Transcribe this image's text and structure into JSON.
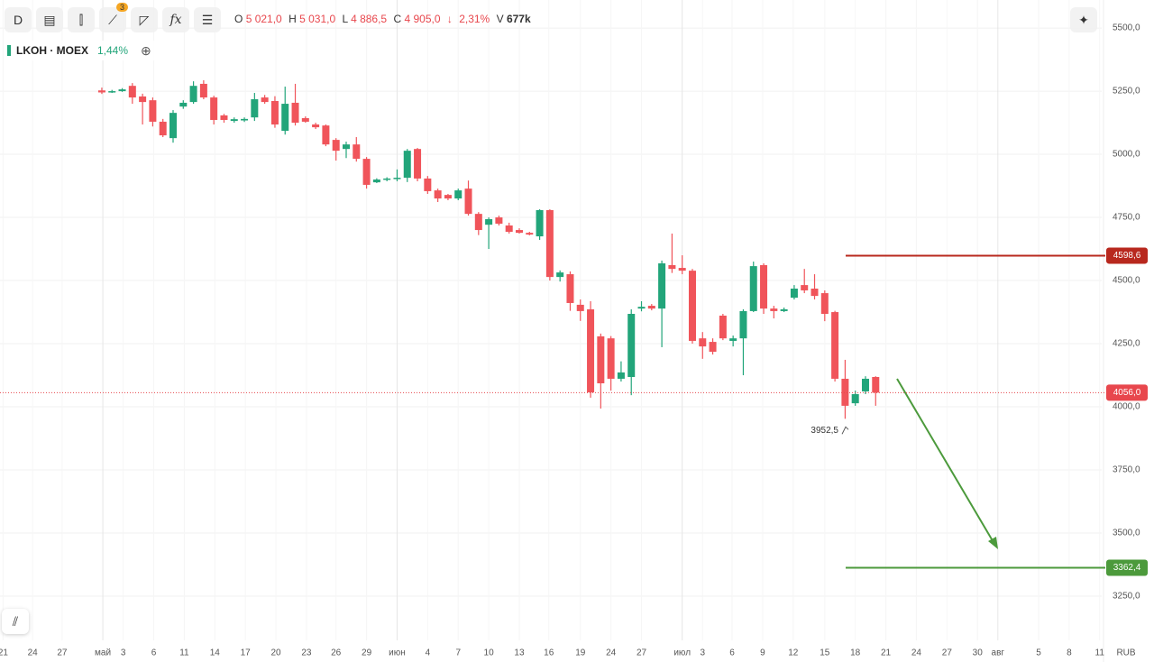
{
  "chart_data": {
    "type": "candlestick",
    "timeframe": "D",
    "indicator_count": "3",
    "function_button": "fx",
    "ohlc": [
      {
        "key": "O",
        "value": "5 021,0"
      },
      {
        "key": "H",
        "value": "5 031,0"
      },
      {
        "key": "L",
        "value": "4 886,5"
      },
      {
        "key": "C",
        "value": "4 905,0"
      }
    ],
    "change_arrow": "↓",
    "change_pct": "2,31%",
    "volume_key": "V",
    "volume": "677k",
    "symbol": "LKOH · MOEX",
    "day_change": "1,44%",
    "currency": "RUB",
    "up_color": "#22a57a",
    "down_color": "#f0545a",
    "open": [
      5253,
      5246,
      5250,
      5271,
      5229,
      5214,
      5129,
      5064,
      5189,
      5207,
      5279,
      5225,
      5154,
      5132,
      5134,
      5146,
      5225,
      5211,
      5093,
      5204,
      5143,
      5118,
      5114,
      5057,
      5021,
      5039,
      4982,
      4889,
      4900,
      4904,
      4907,
      5021,
      4904,
      4857,
      4839,
      4825,
      4864,
      4764,
      4721,
      4750,
      4718,
      4700,
      4689,
      4675,
      4779,
      4514,
      4525,
      4404,
      4386,
      4279,
      4271,
      4111,
      4118,
      4389,
      4400,
      4389,
      4561,
      4550,
      4539,
      4271,
      4257,
      4361,
      4261,
      4271,
      4379,
      4561,
      4389,
      4379,
      4432,
      4482,
      4468,
      4450,
      4375,
      4111,
      4014,
      4061,
      4118
    ],
    "high": [
      5264,
      5255,
      5262,
      5282,
      5240,
      5225,
      5140,
      5175,
      5214,
      5289,
      5293,
      5232,
      5160,
      5146,
      5146,
      5243,
      5235,
      5230,
      5268,
      5279,
      5150,
      5125,
      5118,
      5064,
      5050,
      5068,
      4989,
      4905,
      4909,
      4940,
      5021,
      5025,
      4914,
      4864,
      4843,
      4864,
      4896,
      4771,
      4750,
      4757,
      4729,
      4707,
      4693,
      4782,
      4782,
      4540,
      4536,
      4425,
      4418,
      4290,
      4280,
      4180,
      4386,
      4418,
      4407,
      4579,
      4686,
      4600,
      4546,
      4296,
      4271,
      4368,
      4282,
      4386,
      4575,
      4568,
      4400,
      4393,
      4482,
      4546,
      4525,
      4461,
      4380,
      4186,
      4064,
      4121,
      4121
    ],
    "low": [
      5239,
      5243,
      5247,
      5200,
      5118,
      5110,
      5068,
      5046,
      5180,
      5200,
      5218,
      5118,
      5125,
      5125,
      5128,
      5132,
      5200,
      5105,
      5078,
      5114,
      5125,
      5100,
      5032,
      4975,
      4985,
      4971,
      4864,
      4886,
      4893,
      4893,
      4890,
      4893,
      4843,
      4811,
      4818,
      4818,
      4757,
      4680,
      4625,
      4718,
      4686,
      4686,
      4679,
      4661,
      4500,
      4496,
      4380,
      4340,
      4036,
      3993,
      4064,
      4100,
      4046,
      4378,
      4382,
      4236,
      4530,
      4525,
      4250,
      4190,
      4207,
      4264,
      4239,
      4125,
      4375,
      4368,
      4350,
      4375,
      4425,
      4450,
      4425,
      4339,
      4100,
      3952.5,
      4004,
      4050,
      4004
    ],
    "close": [
      5245,
      5250,
      5257,
      5225,
      5207,
      5129,
      5075,
      5164,
      5204,
      5271,
      5225,
      5136,
      5136,
      5139,
      5140,
      5218,
      5207,
      5118,
      5200,
      5125,
      5129,
      5107,
      5039,
      5014,
      5039,
      4982,
      4879,
      4900,
      4904,
      4907,
      5014,
      4904,
      4854,
      4825,
      4825,
      4857,
      4764,
      4700,
      4743,
      4725,
      4693,
      4689,
      4682,
      4779,
      4514,
      4532,
      4411,
      4379,
      4057,
      4093,
      4111,
      4136,
      4368,
      4396,
      4389,
      4568,
      4546,
      4539,
      4261,
      4239,
      4218,
      4271,
      4271,
      4379,
      4557,
      4389,
      4379,
      4386,
      4468,
      4461,
      4439,
      4368,
      4111,
      4004,
      4050,
      4111,
      4056
    ],
    "ylim": [
      3075,
      5611
    ],
    "yticks": [
      {
        "value": 3250,
        "label": "3250,0"
      },
      {
        "value": 3500,
        "label": "3500,0"
      },
      {
        "value": 3750,
        "label": "3750,0"
      },
      {
        "value": 4000,
        "label": "4000,0"
      },
      {
        "value": 4250,
        "label": "4250,0"
      },
      {
        "value": 4500,
        "label": "4500,0"
      },
      {
        "value": 4750,
        "label": "4750,0"
      },
      {
        "value": 5000,
        "label": "5000,0"
      },
      {
        "value": 5250,
        "label": "5250,0"
      },
      {
        "value": 5500,
        "label": "5500,0"
      }
    ],
    "xlim": [
      -10,
      98.2
    ],
    "xticks": [
      {
        "value": -9.7,
        "label": "21"
      },
      {
        "value": -6.8,
        "label": "24"
      },
      {
        "value": -3.9,
        "label": "27"
      },
      {
        "value": 0.1,
        "label": "май"
      },
      {
        "value": 2.1,
        "label": "3"
      },
      {
        "value": 5.1,
        "label": "6"
      },
      {
        "value": 8.1,
        "label": "11"
      },
      {
        "value": 11.1,
        "label": "14"
      },
      {
        "value": 14.1,
        "label": "17"
      },
      {
        "value": 17.1,
        "label": "20"
      },
      {
        "value": 20.1,
        "label": "23"
      },
      {
        "value": 23,
        "label": "26"
      },
      {
        "value": 26,
        "label": "29"
      },
      {
        "value": 29,
        "label": "июн"
      },
      {
        "value": 32,
        "label": "4"
      },
      {
        "value": 35,
        "label": "7"
      },
      {
        "value": 38,
        "label": "10"
      },
      {
        "value": 41,
        "label": "13"
      },
      {
        "value": 43.9,
        "label": "16"
      },
      {
        "value": 47,
        "label": "19"
      },
      {
        "value": 50,
        "label": "24"
      },
      {
        "value": 53,
        "label": "27"
      },
      {
        "value": 57,
        "label": "июл"
      },
      {
        "value": 59,
        "label": "3"
      },
      {
        "value": 61.9,
        "label": "6"
      },
      {
        "value": 64.9,
        "label": "9"
      },
      {
        "value": 67.9,
        "label": "12"
      },
      {
        "value": 71,
        "label": "15"
      },
      {
        "value": 74,
        "label": "18"
      },
      {
        "value": 77,
        "label": "21"
      },
      {
        "value": 80,
        "label": "24"
      },
      {
        "value": 83,
        "label": "27"
      },
      {
        "value": 86,
        "label": "30"
      },
      {
        "value": 88,
        "label": "авг"
      },
      {
        "value": 92,
        "label": "5"
      },
      {
        "value": 95,
        "label": "8"
      },
      {
        "value": 98,
        "label": "11"
      }
    ],
    "grid": true,
    "levels": [
      {
        "value": 4598.6,
        "label": "4598,6",
        "color": "#b8281e"
      },
      {
        "value": 3362.4,
        "label": "3362,4",
        "color": "#4c9a3c"
      }
    ],
    "last_price": {
      "value": 4056.0,
      "label": "4056,0",
      "color": "#e8474d"
    },
    "low_marker": {
      "value": 3952.5,
      "label": "3952,5"
    }
  }
}
